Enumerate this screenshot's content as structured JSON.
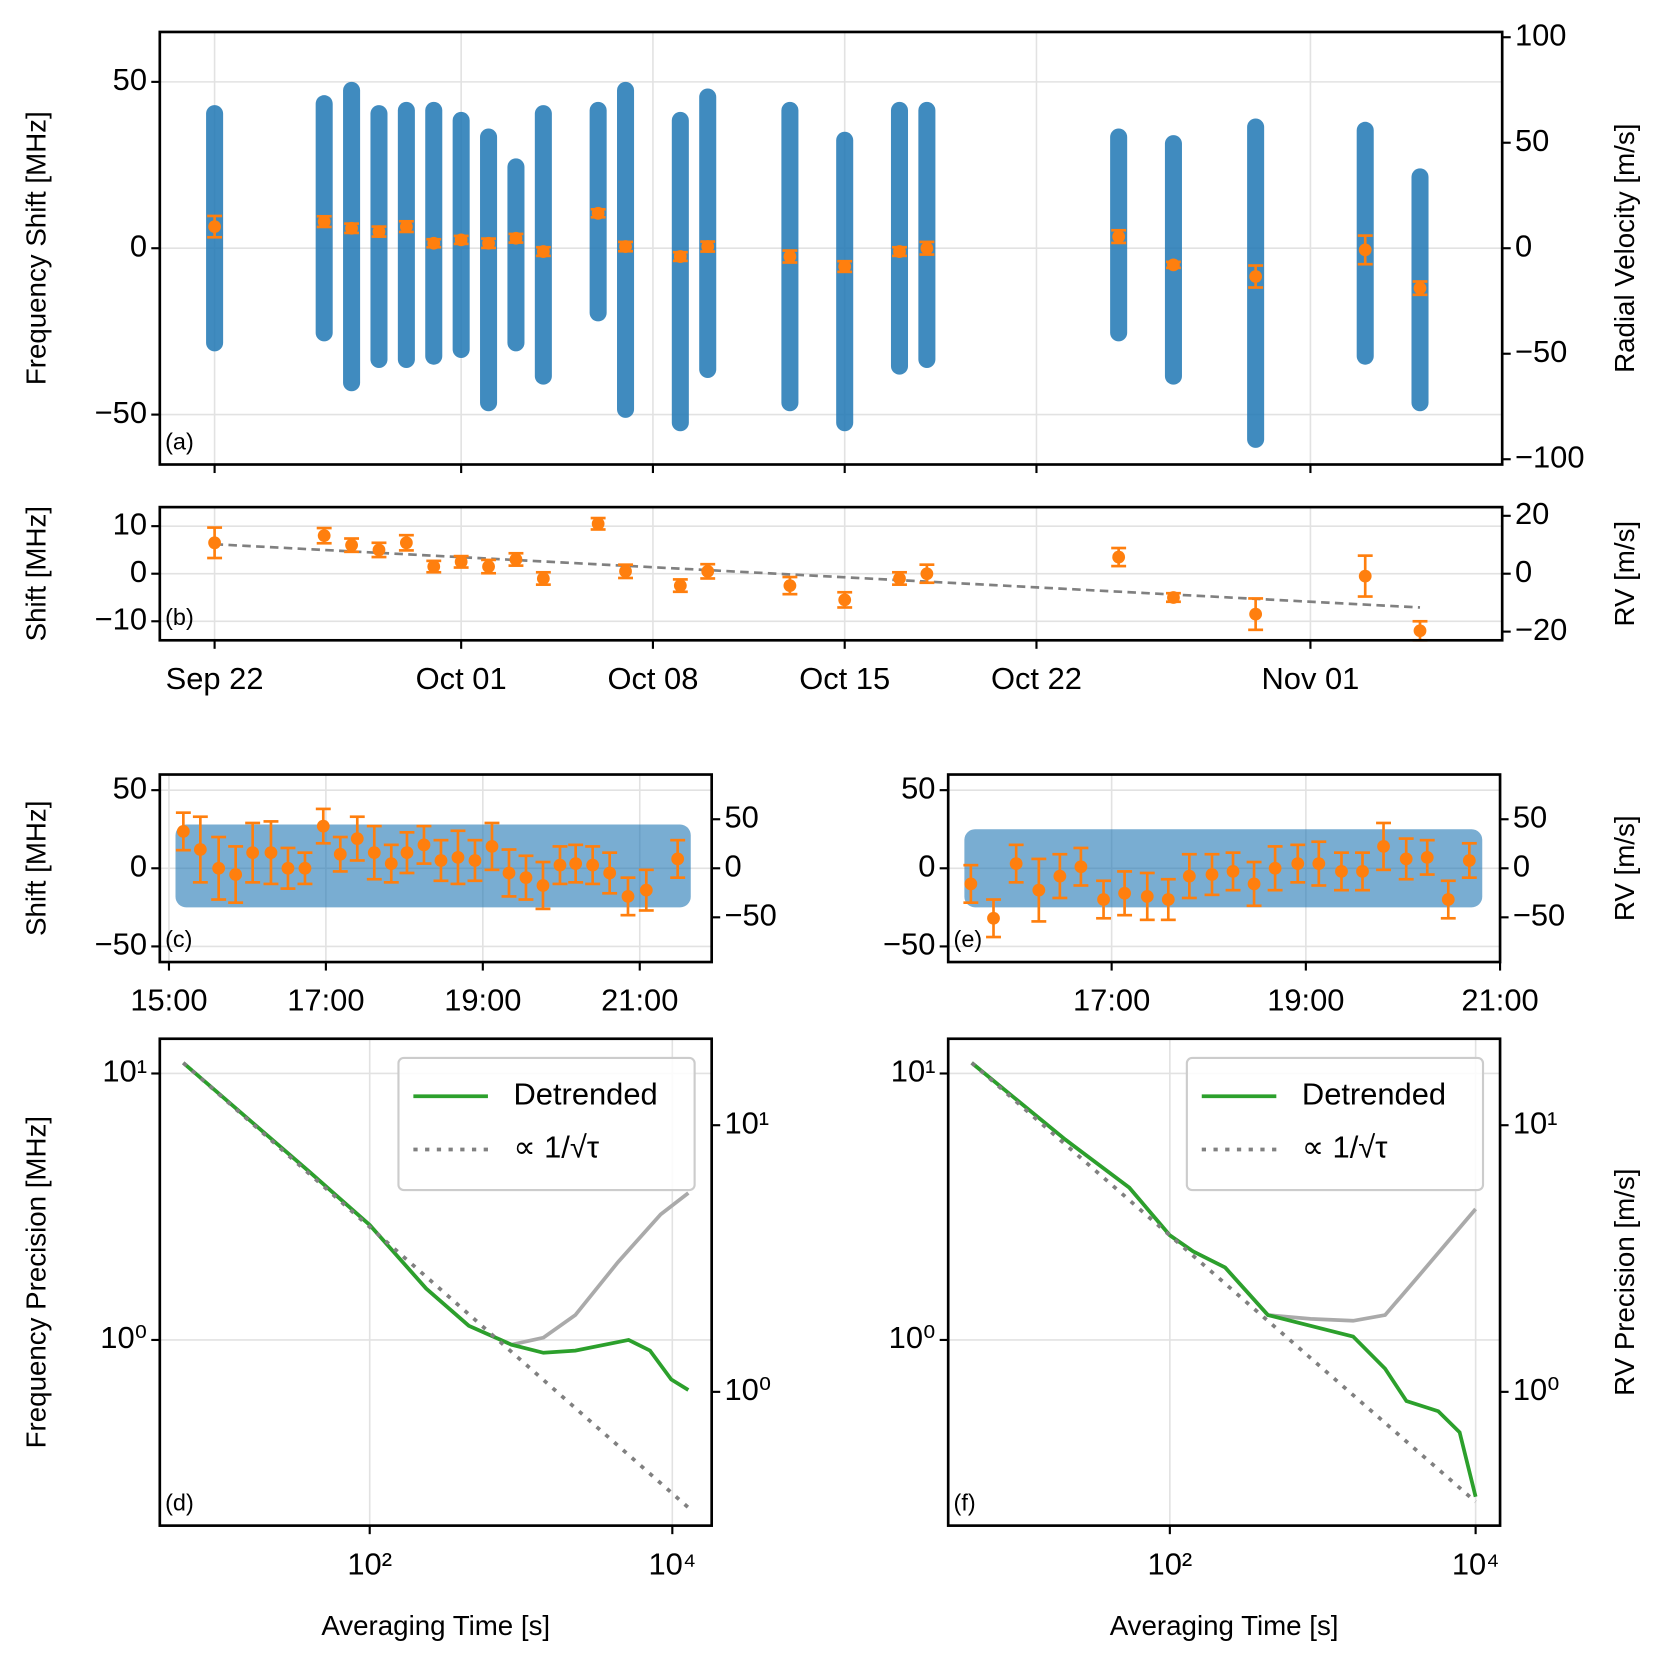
{
  "chart_data": [
    {
      "type": "errorbar",
      "annotation": "(a)",
      "ylabel": "Frequency Shift [MHz]",
      "y2label": "Radial Velocity [m/s]",
      "x": [
        "Sep 22",
        "Sep 26",
        "Sep 27",
        "Sep 28",
        "Sep 29",
        "Sep 30",
        "Oct 01",
        "Oct 02",
        "Oct 03",
        "Oct 04",
        "Oct 06",
        "Oct 07",
        "Oct 09",
        "Oct 10",
        "Oct 13",
        "Oct 15",
        "Oct 17",
        "Oct 18",
        "Oct 25",
        "Oct 27",
        "Oct 30",
        "Nov 03",
        "Nov 05"
      ],
      "values": [
        6.5,
        8,
        6,
        5,
        6.5,
        1.5,
        2.5,
        1.5,
        3,
        -1,
        10.5,
        0.5,
        -2.5,
        0.5,
        -2.5,
        -5.5,
        -1,
        0,
        3.5,
        -5,
        -8.5,
        -0.5,
        -12
      ],
      "errors": [
        3.2,
        1.6,
        1.4,
        1.5,
        1.6,
        1.2,
        1.2,
        1.4,
        1.3,
        1.3,
        1.2,
        1.4,
        1.3,
        1.5,
        1.8,
        1.6,
        1.3,
        1.9,
        1.9,
        0.9,
        3.3,
        4.3,
        2
      ],
      "low": [
        -31,
        -28,
        -43,
        -36,
        -36,
        -35,
        -33,
        -49,
        -31,
        -41,
        -22,
        -51,
        -55,
        -39,
        -49,
        -55,
        -38,
        -36,
        -28,
        -41,
        -60,
        -35,
        -49
      ],
      "high": [
        43,
        46,
        50,
        43,
        44,
        44,
        41,
        36,
        27,
        43,
        44,
        50,
        41,
        48,
        44,
        35,
        44,
        44,
        36,
        34,
        39,
        38,
        24
      ],
      "color": "#1f77b4",
      "errorbar_color": "#ff7f0e",
      "ylim": [
        -65,
        65
      ],
      "yticks": [
        {
          "value": -50,
          "label": "−50"
        },
        0,
        50
      ],
      "y2lim": [
        -102.5,
        102.5
      ],
      "y2ticks": [
        {
          "value": -100,
          "label": "−100"
        },
        {
          "value": -50,
          "label": "−50"
        },
        0,
        50,
        100
      ],
      "grid": true
    },
    {
      "type": "errorbar",
      "annotation": "(b)",
      "ylabel": "Shift [MHz]",
      "y2label": "RV [m/s]",
      "x": [
        "Sep 22",
        "Sep 26",
        "Sep 27",
        "Sep 28",
        "Sep 29",
        "Sep 30",
        "Oct 01",
        "Oct 02",
        "Oct 03",
        "Oct 04",
        "Oct 06",
        "Oct 07",
        "Oct 09",
        "Oct 10",
        "Oct 13",
        "Oct 15",
        "Oct 17",
        "Oct 18",
        "Oct 25",
        "Oct 27",
        "Oct 30",
        "Nov 03",
        "Nov 05"
      ],
      "values": [
        6.5,
        8,
        6,
        5,
        6.5,
        1.5,
        2.5,
        1.5,
        3,
        -1,
        10.5,
        0.5,
        -2.5,
        0.5,
        -2.5,
        -5.5,
        -1,
        0,
        3.5,
        -5,
        -8.5,
        -0.5,
        -12
      ],
      "errors": [
        3.2,
        1.6,
        1.4,
        1.5,
        1.6,
        1.2,
        1.2,
        1.4,
        1.3,
        1.3,
        1.2,
        1.4,
        1.3,
        1.5,
        1.8,
        1.6,
        1.3,
        1.9,
        1.9,
        0.9,
        3.3,
        4.3,
        2
      ],
      "trend_x": [
        "Sep 22",
        "Nov 05"
      ],
      "trend": [
        6.2,
        -7.1
      ],
      "trend_color": "#808080",
      "errorbar_color": "#ff7f0e",
      "xlim": [
        "Sep 20",
        "Nov 08"
      ],
      "xticks": [
        "Sep 22",
        "Oct 01",
        "Oct 08",
        "Oct 15",
        "Oct 22",
        "Nov 01"
      ],
      "ylim": [
        -14,
        14
      ],
      "yticks": [
        {
          "value": -10,
          "label": "−10"
        },
        0,
        10
      ],
      "y2lim": [
        -23,
        23
      ],
      "y2ticks": [
        {
          "value": -20,
          "label": "−20"
        },
        0,
        20
      ],
      "grid": true
    },
    {
      "type": "errorbar",
      "annotation": "(c)",
      "ylabel": "Shift [MHz]",
      "x": [
        "15:11",
        "15:24",
        "15:38",
        "15:51",
        "16:04",
        "16:18",
        "16:31",
        "16:44",
        "16:58",
        "17:11",
        "17:24",
        "17:37",
        "17:50",
        "18:02",
        "18:15",
        "18:28",
        "18:41",
        "18:54",
        "19:07",
        "19:20",
        "19:33",
        "19:46",
        "19:59",
        "20:11",
        "20:24",
        "20:37",
        "20:51",
        "21:05",
        "21:29"
      ],
      "values": [
        23.6,
        12,
        0,
        -4,
        10,
        10,
        0,
        0,
        27,
        9,
        19,
        10,
        3,
        10,
        15,
        5,
        7,
        5,
        14,
        -3,
        -6,
        -11,
        2,
        3,
        2,
        -3,
        -18,
        -14,
        6
      ],
      "errors": [
        12,
        21,
        20,
        18,
        19,
        20,
        13,
        10,
        11,
        11,
        14,
        17,
        12,
        13,
        12,
        13,
        17,
        13,
        15,
        15,
        14,
        15,
        12,
        12,
        12,
        13,
        12,
        13,
        12
      ],
      "cloud_x": [
        "15:05",
        "21:39"
      ],
      "cloud_low": -25,
      "cloud_high": 28,
      "color": "#1f77b4",
      "errorbar_color": "#ff7f0e",
      "xlim": [
        "14:53",
        "21:55"
      ],
      "xticks": [
        "15:00",
        "17:00",
        "19:00",
        "21:00"
      ],
      "ylim": [
        -60,
        60
      ],
      "yticks": [
        {
          "value": -50,
          "label": "−50"
        },
        0,
        50
      ],
      "y2lim": [
        -95.6,
        95.6
      ],
      "y2ticks": [
        {
          "value": -50,
          "label": "−50"
        },
        0,
        50
      ],
      "grid": true
    },
    {
      "type": "errorbar",
      "annotation": "(e)",
      "y2label": "RV [m/s]",
      "x": [
        "15:33",
        "15:47",
        "16:01",
        "16:15",
        "16:28",
        "16:41",
        "16:55",
        "17:08",
        "17:22",
        "17:35",
        "17:48",
        "18:02",
        "18:15",
        "18:28",
        "18:41",
        "18:55",
        "19:08",
        "19:22",
        "19:35",
        "19:48",
        "20:02",
        "20:15",
        "20:28",
        "20:41"
      ],
      "values": [
        -10,
        -32,
        3,
        -14,
        -5,
        1,
        -20,
        -16,
        -18,
        -20,
        -5,
        -4,
        -2,
        -10,
        0,
        3,
        3,
        -2,
        -2,
        14,
        6,
        7,
        -20,
        5
      ],
      "errors": [
        12,
        12,
        12,
        20,
        14,
        12,
        12,
        14,
        15,
        13,
        14,
        13,
        12,
        14,
        14,
        12,
        14,
        12,
        12,
        15,
        13,
        11,
        12,
        11
      ],
      "cloud_x": [
        "15:29",
        "20:49"
      ],
      "cloud_low": -25,
      "cloud_high": 25,
      "color": "#1f77b4",
      "errorbar_color": "#ff7f0e",
      "xlim": [
        "15:19",
        "21:00"
      ],
      "xticks": [
        "17:00",
        "19:00",
        "21:00"
      ],
      "ylim": [
        -60,
        60
      ],
      "yticks": [
        {
          "value": -50,
          "label": "−50"
        },
        0,
        50
      ],
      "y2lim": [
        -95.6,
        95.6
      ],
      "y2ticks": [
        {
          "value": -50,
          "label": "−50"
        },
        0,
        50
      ],
      "grid": true
    },
    {
      "type": "line",
      "annotation": "(d)",
      "xlabel": "Averaging Time [s]",
      "ylabel": "Frequency Precision [MHz]",
      "xlog": true,
      "ylog": true,
      "xlim": [
        4.1,
        18200
      ],
      "xticks": [
        {
          "value": 100,
          "label": "10²"
        },
        {
          "value": 10000,
          "label": "10⁴"
        }
      ],
      "ylim": [
        0.201,
        13.5
      ],
      "yticks": [
        {
          "value": 1,
          "label": "10⁰"
        },
        {
          "value": 10,
          "label": "10¹"
        }
      ],
      "y2lim": [
        0.315,
        21.1
      ],
      "y2ticks": [
        {
          "value": 1,
          "label": "10⁰"
        },
        {
          "value": 10,
          "label": "10¹"
        }
      ],
      "grid": true,
      "legend": "upper right",
      "series": [
        {
          "color": "#aaaaaa",
          "x": [
            5.86,
            39.7,
            100,
            236,
            452,
            865,
            1406,
            2286,
            4375,
            8375,
            12760
          ],
          "values": [
            10.96,
            4.29,
            2.7,
            1.56,
            1.13,
            0.96,
            1.02,
            1.24,
            1.96,
            2.96,
            3.56
          ]
        },
        {
          "name": "Detrended",
          "color": "#2ca02c",
          "x": [
            5.86,
            39.7,
            100,
            236,
            452,
            865,
            1406,
            2286,
            5142,
            7120,
            9840,
            12760
          ],
          "values": [
            10.96,
            4.29,
            2.7,
            1.56,
            1.13,
            0.96,
            0.895,
            0.912,
            1.0,
            0.912,
            0.711,
            0.649
          ]
        },
        {
          "name": "∝ 1/√τ",
          "color": "#808080",
          "dash": "dotted",
          "x": [
            5.86,
            12760
          ],
          "values": [
            10.96,
            0.235
          ]
        }
      ]
    },
    {
      "type": "line",
      "annotation": "(f)",
      "xlabel": "Averaging Time [s]",
      "y2label": "RV Precision [m/s]",
      "xlog": true,
      "ylog": true,
      "xlim": [
        3.55,
        14450
      ],
      "xticks": [
        {
          "value": 100,
          "label": "10²"
        },
        {
          "value": 10000,
          "label": "10⁴"
        }
      ],
      "ylim": [
        0.201,
        13.5
      ],
      "yticks": [
        {
          "value": 1,
          "label": "10⁰"
        },
        {
          "value": 10,
          "label": "10¹"
        }
      ],
      "y2lim": [
        0.315,
        21.1
      ],
      "y2ticks": [
        {
          "value": 1,
          "label": "10⁰"
        },
        {
          "value": 10,
          "label": "10¹"
        }
      ],
      "grid": true,
      "legend": "upper right",
      "series": [
        {
          "color": "#aaaaaa",
          "x": [
            5.06,
            20.7,
            54.3,
            100,
            142,
            230,
            438,
            832,
            1581,
            2558,
            4140,
            10000
          ],
          "values": [
            10.96,
            5.65,
            3.73,
            2.47,
            2.15,
            1.87,
            1.24,
            1.2,
            1.18,
            1.24,
            1.71,
            3.1
          ]
        },
        {
          "name": "Detrended",
          "color": "#2ca02c",
          "x": [
            5.06,
            20.7,
            54.3,
            100,
            142,
            230,
            438,
            832,
            1581,
            2558,
            3527,
            5700,
            7860,
            10000
          ],
          "values": [
            10.96,
            5.65,
            3.73,
            2.47,
            2.15,
            1.87,
            1.24,
            1.13,
            1.03,
            0.78,
            0.59,
            0.54,
            0.45,
            0.258
          ]
        },
        {
          "name": "∝ 1/√τ",
          "color": "#808080",
          "dash": "dotted",
          "x": [
            5.06,
            10000
          ],
          "values": [
            10.96,
            0.247
          ]
        }
      ]
    }
  ]
}
